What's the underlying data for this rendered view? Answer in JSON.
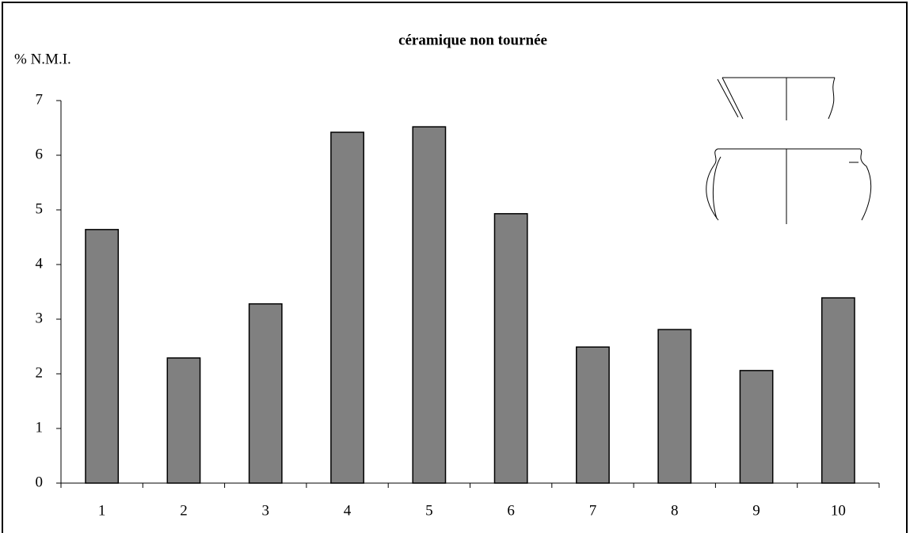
{
  "chart_data": {
    "type": "bar",
    "title": "céramique non tournée",
    "y_label": "% N.M.I.",
    "categories": [
      "1",
      "2",
      "3",
      "4",
      "5",
      "6",
      "7",
      "8",
      "9",
      "10"
    ],
    "values": [
      4.64,
      2.29,
      3.28,
      6.42,
      6.52,
      4.93,
      2.49,
      2.81,
      2.06,
      3.39
    ],
    "color": "#808080",
    "ylim": [
      0,
      7
    ],
    "yticks": [
      0,
      1,
      2,
      3,
      4,
      5,
      6,
      7
    ],
    "grid": false
  }
}
